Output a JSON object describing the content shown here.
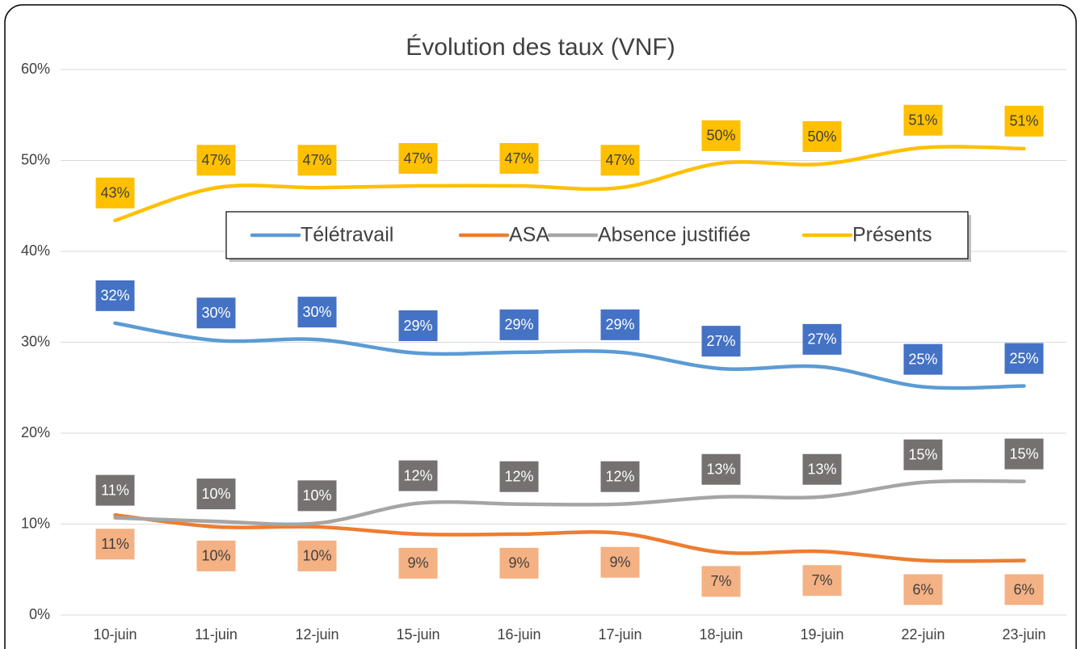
{
  "chart_data": {
    "type": "line",
    "title": "Évolution des taux (VNF)",
    "categories": [
      "10-juin",
      "11-juin",
      "12-juin",
      "15-juin",
      "16-juin",
      "17-juin",
      "18-juin",
      "19-juin",
      "22-juin",
      "23-juin"
    ],
    "ylim": [
      0,
      60
    ],
    "yticks": [
      {
        "value": 0,
        "label": "0%"
      },
      {
        "value": 10,
        "label": "10%"
      },
      {
        "value": 20,
        "label": "20%"
      },
      {
        "value": 30,
        "label": "30%"
      },
      {
        "value": 40,
        "label": "40%"
      },
      {
        "value": 50,
        "label": "50%"
      },
      {
        "value": 60,
        "label": "60%"
      }
    ],
    "grid": true,
    "smooth": true,
    "legend": "top",
    "series": [
      {
        "name": "Télétravail",
        "color": "#5b9bd5",
        "label_fill": "#4472c4",
        "label_text": "#ffffff",
        "label_side": "above",
        "values": [
          32.1,
          30.2,
          30.3,
          28.8,
          28.9,
          28.9,
          27.1,
          27.3,
          25.1,
          25.2
        ],
        "value_labels": [
          "32%",
          "30%",
          "30%",
          "29%",
          "29%",
          "29%",
          "27%",
          "27%",
          "25%",
          "25%"
        ]
      },
      {
        "name": "ASA",
        "color": "#ed7d31",
        "label_fill": "#f4b183",
        "label_text": "#404040",
        "label_side": "below",
        "values": [
          11.0,
          9.7,
          9.7,
          8.9,
          8.9,
          9.0,
          6.9,
          7.0,
          6.0,
          6.0
        ],
        "value_labels": [
          "11%",
          "10%",
          "10%",
          "9%",
          "9%",
          "9%",
          "7%",
          "7%",
          "6%",
          "6%"
        ]
      },
      {
        "name": "Absence justifiée",
        "color": "#a5a5a5",
        "label_fill": "#767171",
        "label_text": "#ffffff",
        "label_side": "above",
        "values": [
          10.7,
          10.3,
          10.1,
          12.3,
          12.2,
          12.2,
          13.0,
          13.0,
          14.6,
          14.7
        ],
        "value_labels": [
          "11%",
          "10%",
          "10%",
          "12%",
          "12%",
          "12%",
          "13%",
          "13%",
          "15%",
          "15%"
        ]
      },
      {
        "name": "Présents",
        "color": "#ffc000",
        "label_fill": "#ffc000",
        "label_text": "#404040",
        "label_side": "above",
        "values": [
          43.4,
          47.0,
          47.0,
          47.2,
          47.2,
          47.0,
          49.7,
          49.6,
          51.4,
          51.3
        ],
        "value_labels": [
          "43%",
          "47%",
          "47%",
          "47%",
          "47%",
          "47%",
          "50%",
          "50%",
          "51%",
          "51%"
        ]
      }
    ]
  }
}
